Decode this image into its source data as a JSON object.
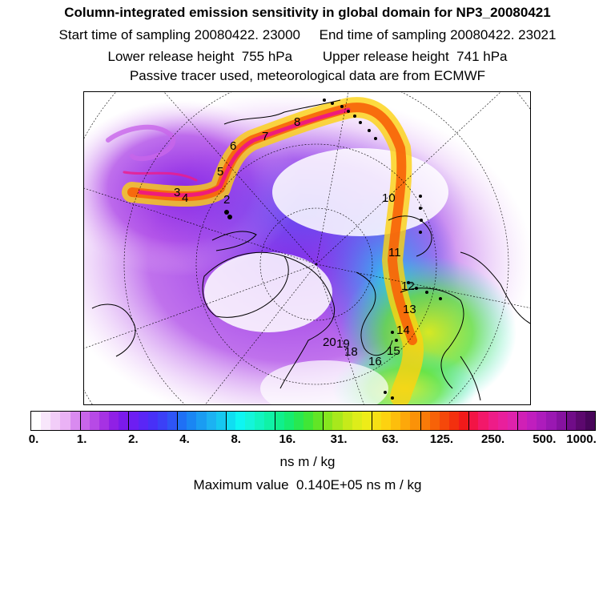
{
  "header": {
    "title": "Column-integrated emission sensitivity in global domain for NP3_20080421",
    "line2": "Start time of sampling 20080422. 23000     End time of sampling 20080422. 23021",
    "line3": "Lower release height  755 hPa        Upper release height  741 hPa",
    "line4": "Passive tracer used, meteorological data are from ECMWF"
  },
  "map": {
    "projection": "north-polar-stereographic",
    "trajectory_labels": [
      "2",
      "3",
      "4",
      "5",
      "6",
      "7",
      "8",
      "10",
      "11",
      "12",
      "13",
      "14",
      "15",
      "16",
      "18",
      "19",
      "20"
    ]
  },
  "colorbar": {
    "tick_labels": [
      "0.",
      "1.",
      "2.",
      "4.",
      "8.",
      "16.",
      "31.",
      "63.",
      "125.",
      "250.",
      "500.",
      "1000."
    ],
    "unit": "ns m / kg",
    "colors": [
      "#ffffff",
      "#f8e6fb",
      "#f2cdf8",
      "#eab2f5",
      "#d98af0",
      "#c865ea",
      "#b74ae6",
      "#a632e3",
      "#9020e5",
      "#7b1aeb",
      "#6d1ef2",
      "#5a26f6",
      "#4830f7",
      "#3b40f7",
      "#2e55f6",
      "#1f70f5",
      "#1a86f3",
      "#1a9cf2",
      "#1cb2f2",
      "#16c8f0",
      "#10def2",
      "#0ef6f2",
      "#14f5da",
      "#12f4c0",
      "#10f2a6",
      "#10ef8c",
      "#16ec70",
      "#28e850",
      "#40e636",
      "#62e526",
      "#86e61e",
      "#a8e81c",
      "#c6ea1a",
      "#dded1a",
      "#eeec18",
      "#f6e014",
      "#fdd210",
      "#fdbe0c",
      "#fda80a",
      "#fb9208",
      "#f97a08",
      "#f76208",
      "#f5480a",
      "#f3300e",
      "#f21a1a",
      "#f21445",
      "#f2186a",
      "#ee1c88",
      "#e91f9c",
      "#df22ac",
      "#d020b6",
      "#c01ebe",
      "#ad1cbc",
      "#9a18b2",
      "#8612a0",
      "#700c88",
      "#5c086e",
      "#48055a"
    ]
  },
  "footer": {
    "max_value": "Maximum value  0.140E+05 ns m / kg"
  }
}
